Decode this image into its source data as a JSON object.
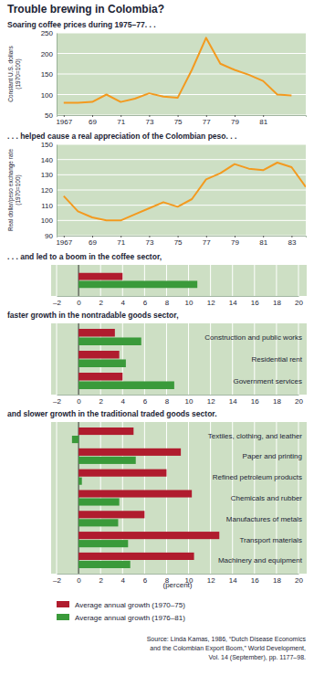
{
  "title": "Trouble brewing in Colombia?",
  "chart_data": [
    {
      "type": "line",
      "title": "Soaring coffee prices during 1975–77. . .",
      "ylabel": "Constant U.S. dollars (1970=100)",
      "x": [
        1967,
        1968,
        1969,
        1970,
        1971,
        1972,
        1973,
        1974,
        1975,
        1976,
        1977,
        1978,
        1979,
        1980,
        1981,
        1982,
        1983
      ],
      "series": [
        {
          "color": "#f39a1f",
          "values": [
            80,
            80,
            82,
            100,
            82,
            90,
            103,
            95,
            92,
            160,
            238,
            175,
            160,
            148,
            133,
            100,
            98
          ]
        }
      ],
      "xlim": [
        1966.5,
        1984
      ],
      "xticks": [
        1967,
        {
          "value": 1969,
          "label": "69"
        },
        {
          "value": 1971,
          "label": "71"
        },
        {
          "value": 1973,
          "label": "73"
        },
        {
          "value": 1975,
          "label": "75"
        },
        {
          "value": 1977,
          "label": "77"
        },
        {
          "value": 1979,
          "label": "79"
        },
        {
          "value": 1981,
          "label": "81"
        }
      ],
      "ylim": [
        50,
        250
      ],
      "yticks": [
        50,
        100,
        150,
        200,
        250
      ],
      "grid": true
    },
    {
      "type": "line",
      "title": ". . . helped cause a real appreciation of the Colombian peso. . .",
      "ylabel": "Real dollar/peso exchange rate (1970=100)",
      "x": [
        1967,
        1968,
        1969,
        1970,
        1971,
        1972,
        1973,
        1974,
        1975,
        1976,
        1977,
        1978,
        1979,
        1980,
        1981,
        1982,
        1983,
        1984
      ],
      "series": [
        {
          "color": "#f39a1f",
          "values": [
            116,
            106,
            102,
            100,
            100,
            104,
            108,
            112,
            109,
            114,
            127,
            131,
            137,
            134,
            133,
            138,
            135,
            122
          ]
        }
      ],
      "xlim": [
        1966.5,
        1984
      ],
      "xticks": [
        1967,
        {
          "value": 1969,
          "label": "69"
        },
        {
          "value": 1971,
          "label": "71"
        },
        {
          "value": 1973,
          "label": "73"
        },
        {
          "value": 1975,
          "label": "75"
        },
        {
          "value": 1977,
          "label": "77"
        },
        {
          "value": 1979,
          "label": "79"
        },
        {
          "value": 1981,
          "label": "81"
        },
        {
          "value": 1983,
          "label": "83"
        }
      ],
      "ylim": [
        90,
        150
      ],
      "yticks": [
        90,
        100,
        110,
        120,
        130,
        140,
        150
      ],
      "grid": true
    },
    {
      "type": "bar",
      "orientation": "horizontal",
      "title": ". . . and led to a boom in the coffee sector,",
      "categories": [
        null
      ],
      "series": [
        {
          "color": "#b01c2e",
          "values": [
            4.0
          ]
        },
        {
          "color": "#3a9a3a",
          "values": [
            10.8
          ]
        }
      ],
      "xlim": [
        -2,
        20
      ],
      "xticks": [
        {
          "value": -2,
          "label": "–2"
        },
        0,
        2,
        4,
        6,
        8,
        10,
        12,
        14,
        16,
        18,
        20
      ],
      "grid": true
    },
    {
      "type": "bar",
      "orientation": "horizontal",
      "title": "faster growth in the nontradable goods sector,",
      "categories": [
        "Construction and public works",
        "Residential rent",
        "Government services"
      ],
      "series": [
        {
          "color": "#b01c2e",
          "values": [
            3.3,
            3.7,
            4.0
          ]
        },
        {
          "color": "#3a9a3a",
          "values": [
            5.7,
            4.3,
            8.7
          ]
        }
      ],
      "xlim": [
        -2,
        20
      ],
      "xticks": [
        {
          "value": -2,
          "label": "–2"
        },
        0,
        2,
        4,
        6,
        8,
        10,
        12,
        14,
        16,
        18,
        20
      ],
      "grid": true
    },
    {
      "type": "bar",
      "orientation": "horizontal",
      "title": "and slower growth in the traditional traded goods sector.",
      "categories": [
        "Textiles, clothing, and leather",
        "Paper and printing",
        "Refined petroleum products",
        "Chemicals and rubber",
        "Manufactures of metals",
        "Transport materials",
        "Machinery and equipment"
      ],
      "series": [
        {
          "name": "Average annual growth (1970–75)",
          "color": "#b01c2e",
          "values": [
            5.0,
            9.3,
            8.0,
            10.3,
            6.0,
            12.8,
            10.5
          ]
        },
        {
          "name": "Average annual growth (1976–81)",
          "color": "#3a9a3a",
          "values": [
            -0.6,
            5.2,
            0.3,
            3.7,
            3.6,
            4.5,
            4.7
          ]
        }
      ],
      "xlim": [
        -2,
        20
      ],
      "xticks": [
        {
          "value": -2,
          "label": "–2"
        },
        0,
        2,
        4,
        6,
        8,
        10,
        12,
        14,
        16,
        18,
        20
      ],
      "xlabel": "(percent)",
      "grid": true,
      "legend": "bottom"
    }
  ],
  "source": [
    "Source: Linda Kamas, 1986, “Dutch Disease Economics",
    "and the Colombian Export Boom,” World Development,",
    "Vol. 14 (September), pp. 1177–98."
  ]
}
